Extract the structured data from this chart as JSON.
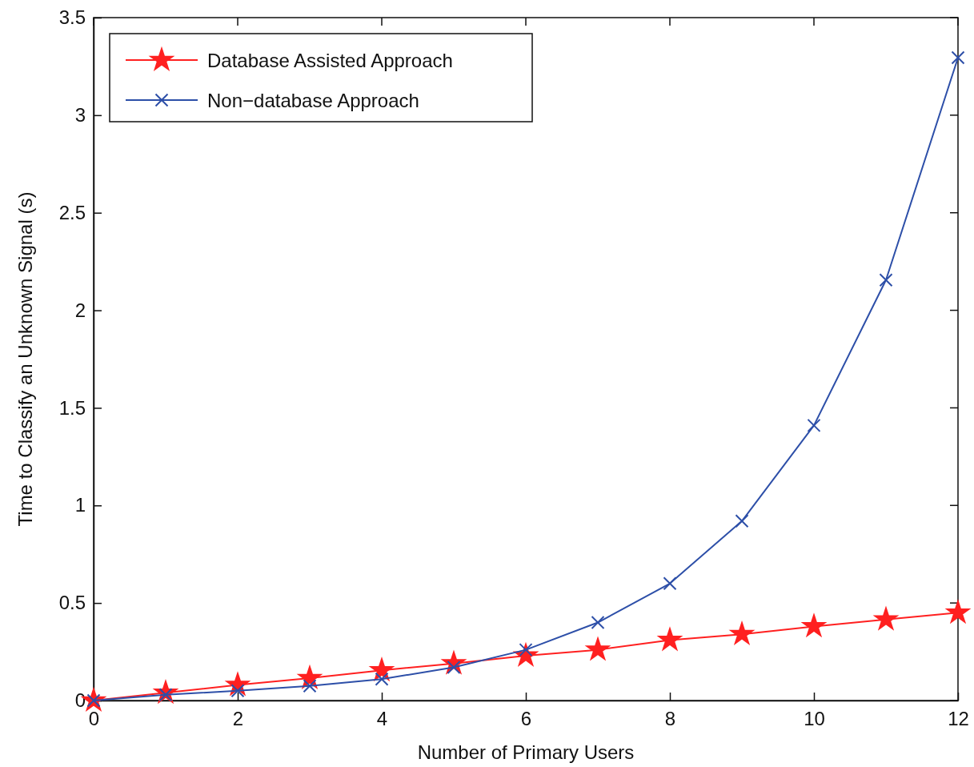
{
  "chart_data": {
    "type": "line",
    "xlabel": "Number of Primary Users",
    "ylabel": "Time to Classify an Unknown Signal (s)",
    "x": [
      0,
      1,
      2,
      3,
      4,
      5,
      6,
      7,
      8,
      9,
      10,
      11,
      12
    ],
    "series": [
      {
        "name": "Database Assisted Approach",
        "color": "#ff2020",
        "marker": "star",
        "values": [
          0,
          0.04,
          0.08,
          0.115,
          0.155,
          0.19,
          0.23,
          0.26,
          0.31,
          0.34,
          0.38,
          0.415,
          0.45
        ]
      },
      {
        "name": "Non−database Approach",
        "color": "#2d4fa8",
        "marker": "cross",
        "values": [
          0,
          0.03,
          0.05,
          0.075,
          0.11,
          0.17,
          0.26,
          0.4,
          0.6,
          0.92,
          1.41,
          2.155,
          3.295
        ]
      }
    ],
    "xlim": [
      0,
      12
    ],
    "xticks": [
      0,
      2,
      4,
      6,
      8,
      10,
      12
    ],
    "ylim": [
      0,
      3.5
    ],
    "yticks": [
      0,
      0.5,
      1,
      1.5,
      2,
      2.5,
      3,
      3.5
    ],
    "grid": false,
    "legend": "top left",
    "line_style": "solid"
  }
}
